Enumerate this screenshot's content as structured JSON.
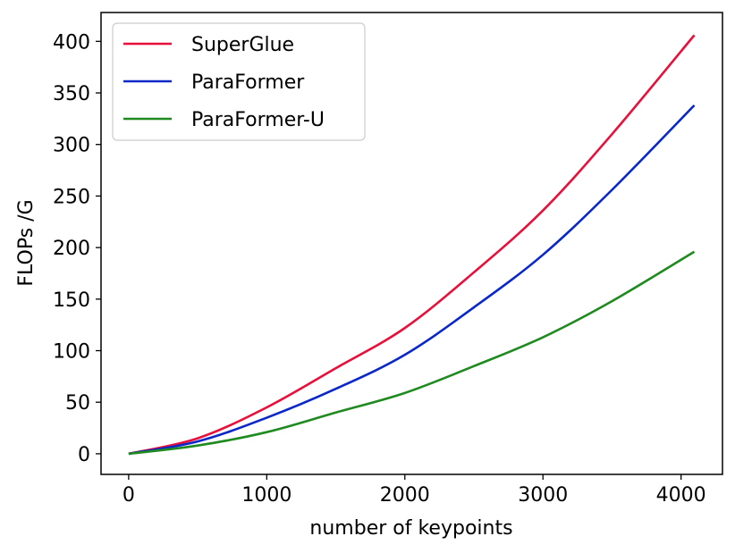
{
  "chart_data": {
    "type": "line",
    "title": "",
    "xlabel": "number of keypoints",
    "ylabel": "FLOPs /G",
    "xlim": [
      -200,
      4300
    ],
    "ylim": [
      -20,
      428
    ],
    "xticks": [
      0,
      1000,
      2000,
      3000,
      4000
    ],
    "xtick_labels": [
      "0",
      "1000",
      "2000",
      "3000",
      "4000"
    ],
    "yticks": [
      0,
      50,
      100,
      150,
      200,
      250,
      300,
      350,
      400
    ],
    "ytick_labels": [
      "0",
      "50",
      "100",
      "150",
      "200",
      "250",
      "300",
      "350",
      "400"
    ],
    "grid": false,
    "legend_position": "top-left",
    "series": [
      {
        "name": "SuperGlue",
        "color": "#e8103a",
        "x": [
          0,
          500,
          1000,
          1500,
          2000,
          2500,
          3000,
          3500,
          4096
        ],
        "y": [
          0,
          15,
          45,
          83,
          122,
          176,
          236,
          310,
          406
        ]
      },
      {
        "name": "ParaFormer",
        "color": "#0a27c8",
        "x": [
          0,
          500,
          1000,
          1500,
          2000,
          2500,
          3000,
          3500,
          4096
        ],
        "y": [
          0,
          12,
          35,
          63,
          96,
          142,
          193,
          256,
          338
        ]
      },
      {
        "name": "ParaFormer-U",
        "color": "#1f8a1f",
        "x": [
          0,
          500,
          1000,
          1500,
          2000,
          2500,
          3000,
          3500,
          4096
        ],
        "y": [
          0,
          8,
          21,
          40,
          59,
          85,
          113,
          148,
          196
        ]
      }
    ]
  }
}
